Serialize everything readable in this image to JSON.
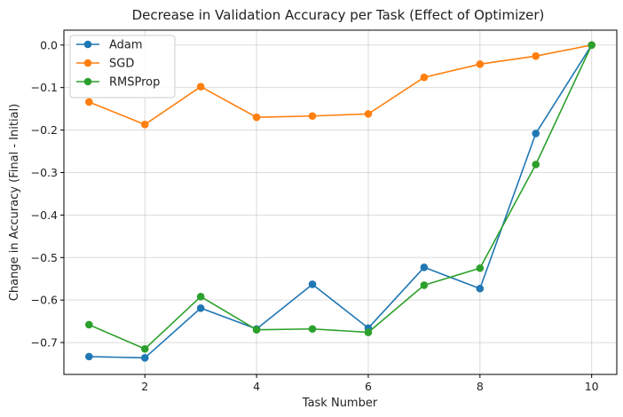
{
  "chart_data": {
    "type": "line",
    "title": "Decrease in Validation Accuracy per Task (Effect of Optimizer)",
    "xlabel": "Task Number",
    "ylabel": "Change in Accuracy (Final - Initial)",
    "x": [
      1,
      2,
      3,
      4,
      5,
      6,
      7,
      8,
      9,
      10
    ],
    "xlim": [
      0.55,
      10.45
    ],
    "ylim": [
      -0.775,
      0.035
    ],
    "xticks": [
      2,
      4,
      6,
      8,
      10
    ],
    "yticks": [
      0.0,
      -0.1,
      -0.2,
      -0.3,
      -0.4,
      -0.5,
      -0.6,
      -0.7
    ],
    "xtick_labels": [
      "2",
      "4",
      "6",
      "8",
      "10"
    ],
    "ytick_labels": [
      "0.0",
      "−0.1",
      "−0.2",
      "−0.3",
      "−0.4",
      "−0.5",
      "−0.6",
      "−0.7"
    ],
    "grid": true,
    "legend_position": "top-left",
    "series": [
      {
        "name": "Adam",
        "color": "#1f77b4",
        "values": [
          -0.733,
          -0.736,
          -0.619,
          -0.668,
          -0.563,
          -0.666,
          -0.523,
          -0.573,
          -0.208,
          0.0
        ]
      },
      {
        "name": "SGD",
        "color": "#ff7f0e",
        "values": [
          -0.134,
          -0.187,
          -0.098,
          -0.17,
          -0.167,
          -0.162,
          -0.076,
          -0.045,
          -0.026,
          0.0
        ]
      },
      {
        "name": "RMSProp",
        "color": "#2ca02c",
        "values": [
          -0.658,
          -0.715,
          -0.592,
          -0.67,
          -0.668,
          -0.676,
          -0.565,
          -0.525,
          -0.281,
          0.0
        ]
      }
    ]
  }
}
